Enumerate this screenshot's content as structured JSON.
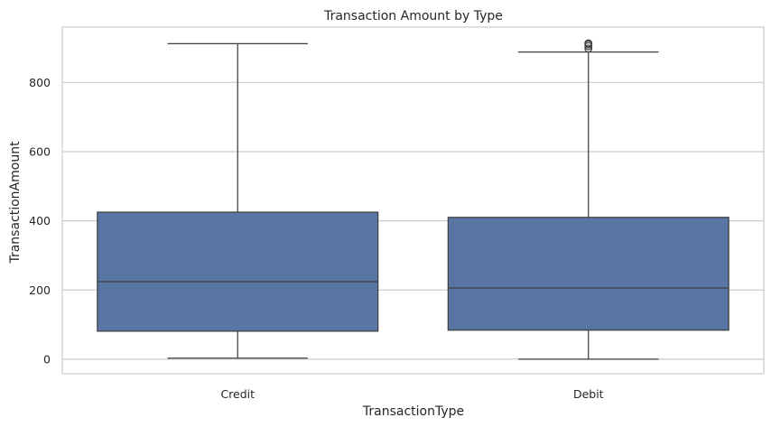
{
  "chart_data": {
    "type": "box",
    "title": "Transaction Amount by Type",
    "xlabel": "TransactionType",
    "ylabel": "TransactionAmount",
    "ylim": [
      -42,
      960
    ],
    "yticks": [
      0,
      200,
      400,
      600,
      800
    ],
    "grid": true,
    "box_color": "#5975a4",
    "categories": [
      "Credit",
      "Debit"
    ],
    "boxes": [
      {
        "category": "Credit",
        "whisker_low": 3,
        "q1": 81,
        "median": 224,
        "q3": 425,
        "whisker_high": 912,
        "outliers": []
      },
      {
        "category": "Debit",
        "whisker_low": 0,
        "q1": 84,
        "median": 206,
        "q3": 410,
        "whisker_high": 888,
        "outliers": [
          898,
          905,
          910,
          913
        ]
      }
    ]
  }
}
